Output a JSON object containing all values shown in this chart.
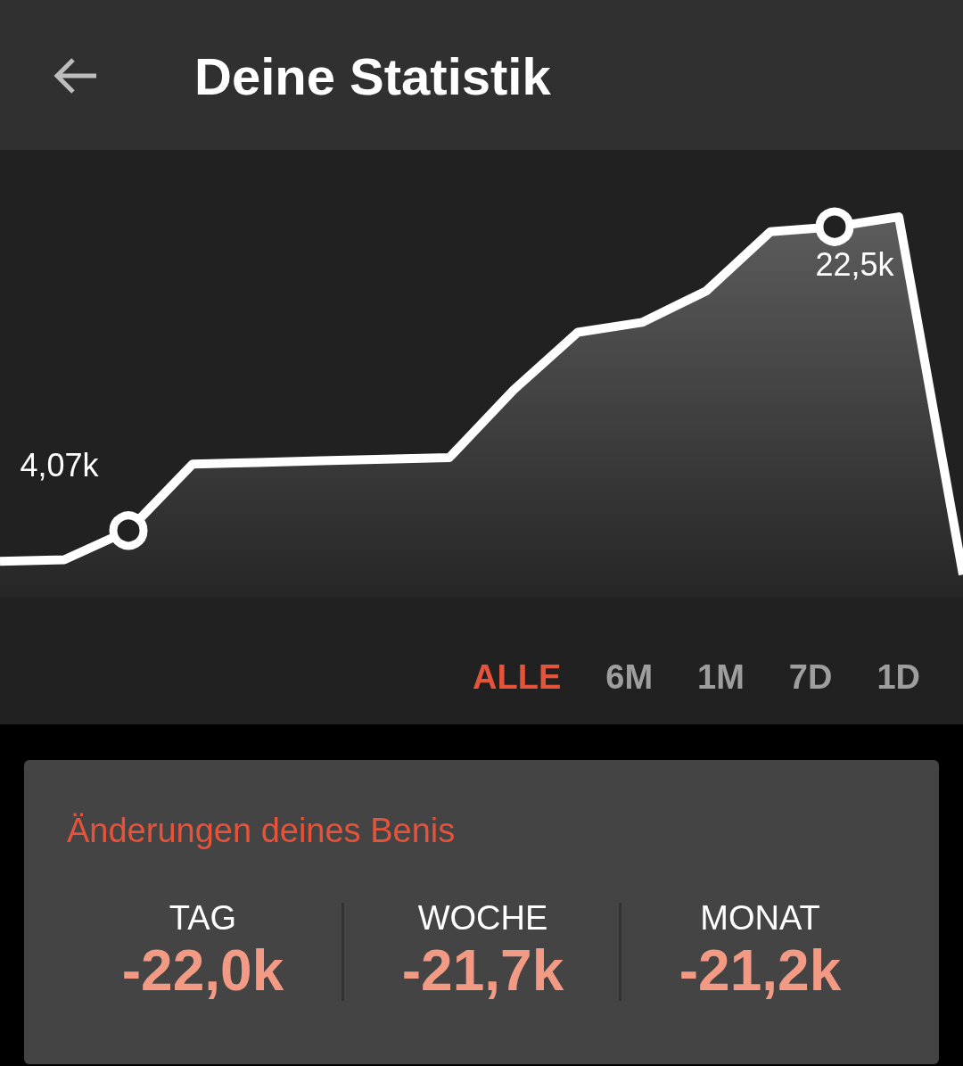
{
  "chart_data": [
    {
      "type": "area",
      "title": "Deine Statistik",
      "categories": [
        null,
        null,
        null,
        null,
        null,
        null,
        null,
        null,
        null,
        null,
        null,
        null,
        null,
        null,
        null,
        null
      ],
      "series": [
        {
          "color": "#ffffff",
          "values": [
            2.2,
            2.3,
            4.07,
            8.1,
            8.2,
            8.3,
            8.4,
            8.5,
            12.6,
            16.1,
            16.7,
            18.6,
            22.2,
            22.5,
            23.1,
            1.4
          ],
          "value_labels": [
            null,
            null,
            "4,07k",
            null,
            null,
            null,
            null,
            null,
            null,
            null,
            null,
            null,
            null,
            "22,5k",
            null,
            null
          ]
        }
      ],
      "annotations": [
        "ALLE",
        "6M",
        "1M",
        "7D",
        "1D"
      ]
    },
    {
      "type": "other",
      "title": "Änderungen deines Benis",
      "categories": [
        "TAG",
        "WOCHE",
        "MONAT"
      ],
      "value_labels": [
        "-22,0k",
        "-21,7k",
        "-21,2k"
      ]
    }
  ]
}
